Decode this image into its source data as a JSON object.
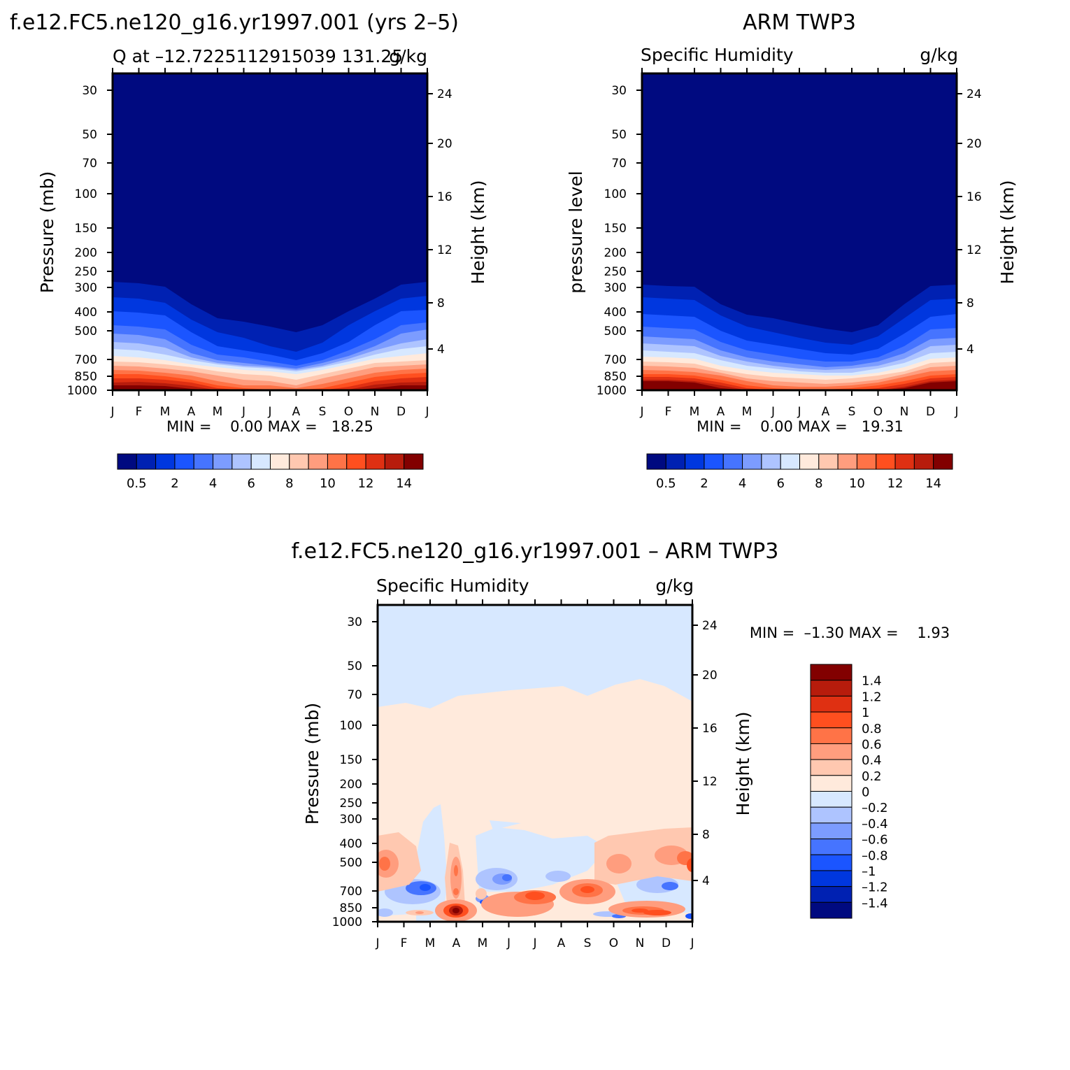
{
  "figure": {
    "top_left_title": "f.e12.FC5.ne120_g16.yr1997.001 (yrs 2–5)",
    "top_right_title": "ARM TWP3",
    "bottom_title": "f.e12.FC5.ne120_g16.yr1997.001 – ARM TWP3"
  },
  "chart_data": [
    {
      "id": "model",
      "type": "heatmap",
      "subtitle_left": "Q at –12.7225112915039 131.25",
      "subtitle_right": "g/kg",
      "ylabel": "Pressure (mb)",
      "y2label": "Height (km)",
      "x_ticks": [
        "J",
        "F",
        "M",
        "A",
        "M",
        "J",
        "J",
        "A",
        "S",
        "O",
        "N",
        "D",
        "J"
      ],
      "p_ticks": [
        "30",
        "50",
        "70",
        "100",
        "150",
        "200",
        "250",
        "300",
        "400",
        "500",
        "700",
        "850",
        "1000"
      ],
      "h_ticks": [
        "4",
        "8",
        "12",
        "16",
        "20",
        "24"
      ],
      "stats": "MIN =    0.00 MAX =   18.25",
      "colorbar": {
        "labels": [
          "0.5",
          "2",
          "4",
          "6",
          "8",
          "10",
          "12",
          "14"
        ],
        "colors": [
          "#000a80",
          "#0021b2",
          "#0037df",
          "#1b55ff",
          "#4674ff",
          "#7c9cff",
          "#aec4ff",
          "#d7e8ff",
          "#ffeadc",
          "#ffc8b0",
          "#ff9d7e",
          "#ff7347",
          "#ff4f1f",
          "#df3012",
          "#b71c0c",
          "#820000"
        ]
      }
    },
    {
      "id": "obs",
      "type": "heatmap",
      "subtitle_left": "Specific Humidity",
      "subtitle_right": "g/kg",
      "ylabel": "pressure level",
      "y2label": "Height (km)",
      "x_ticks": [
        "J",
        "F",
        "M",
        "A",
        "M",
        "J",
        "J",
        "A",
        "S",
        "O",
        "N",
        "D",
        "J"
      ],
      "p_ticks": [
        "30",
        "50",
        "70",
        "100",
        "150",
        "200",
        "250",
        "300",
        "400",
        "500",
        "700",
        "850",
        "1000"
      ],
      "h_ticks": [
        "4",
        "8",
        "12",
        "16",
        "20",
        "24"
      ],
      "stats": "MIN =    0.00 MAX =   19.31",
      "colorbar": {
        "labels": [
          "0.5",
          "2",
          "4",
          "6",
          "8",
          "10",
          "12",
          "14"
        ],
        "colors": [
          "#000a80",
          "#0021b2",
          "#0037df",
          "#1b55ff",
          "#4674ff",
          "#7c9cff",
          "#aec4ff",
          "#d7e8ff",
          "#ffeadc",
          "#ffc8b0",
          "#ff9d7e",
          "#ff7347",
          "#ff4f1f",
          "#df3012",
          "#b71c0c",
          "#820000"
        ]
      }
    },
    {
      "id": "diff",
      "type": "heatmap",
      "subtitle_left": "Specific Humidity",
      "subtitle_right": "g/kg",
      "ylabel": "Pressure (mb)",
      "y2label": "Height (km)",
      "x_ticks": [
        "J",
        "F",
        "M",
        "A",
        "M",
        "J",
        "J",
        "A",
        "S",
        "O",
        "N",
        "D",
        "J"
      ],
      "p_ticks": [
        "30",
        "50",
        "70",
        "100",
        "150",
        "200",
        "250",
        "300",
        "400",
        "500",
        "700",
        "850",
        "1000"
      ],
      "h_ticks": [
        "4",
        "8",
        "12",
        "16",
        "20",
        "24"
      ],
      "stats": "MIN =  –1.30 MAX =    1.93",
      "colorbar": {
        "labels": [
          "1.4",
          "1.2",
          "1",
          "0.8",
          "0.6",
          "0.4",
          "0.2",
          "0",
          "–0.2",
          "–0.4",
          "–0.6",
          "–0.8",
          "–1",
          "–1.2",
          "–1.4"
        ],
        "colors": [
          "#820000",
          "#b71c0c",
          "#df3012",
          "#ff4f1f",
          "#ff7347",
          "#ff9d7e",
          "#ffc8b0",
          "#ffeadc",
          "#d7e8ff",
          "#aec4ff",
          "#7c9cff",
          "#4674ff",
          "#1b55ff",
          "#0037df",
          "#0021b2",
          "#000a80"
        ]
      }
    }
  ]
}
